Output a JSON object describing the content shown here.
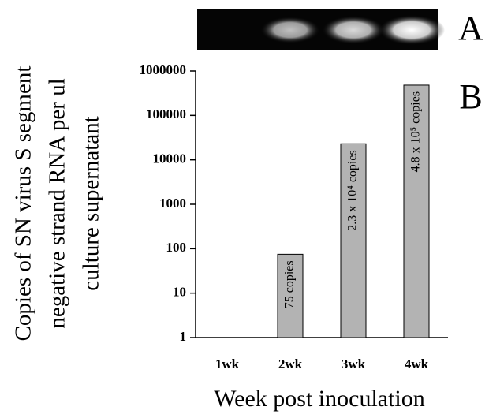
{
  "chart_data": {
    "type": "bar",
    "categories": [
      "1wk",
      "2wk",
      "3wk",
      "4wk"
    ],
    "values": [
      null,
      75,
      23000,
      480000
    ],
    "value_labels": [
      null,
      "75 copies",
      "2.3 x 10⁴ copies",
      "4.8 x 10⁵ copies"
    ],
    "color": "#b3b3b3",
    "log_scale": true,
    "ylim": [
      1,
      1000000
    ],
    "yticks": [
      1,
      10,
      100,
      1000,
      10000,
      100000,
      1000000
    ],
    "ylabel": [
      "Copies of SN virus S segment",
      "negative strand RNA per ul",
      "culture supernatant"
    ],
    "xlabel": "Week post inoculation",
    "annotations": [
      "A",
      "B"
    ]
  }
}
